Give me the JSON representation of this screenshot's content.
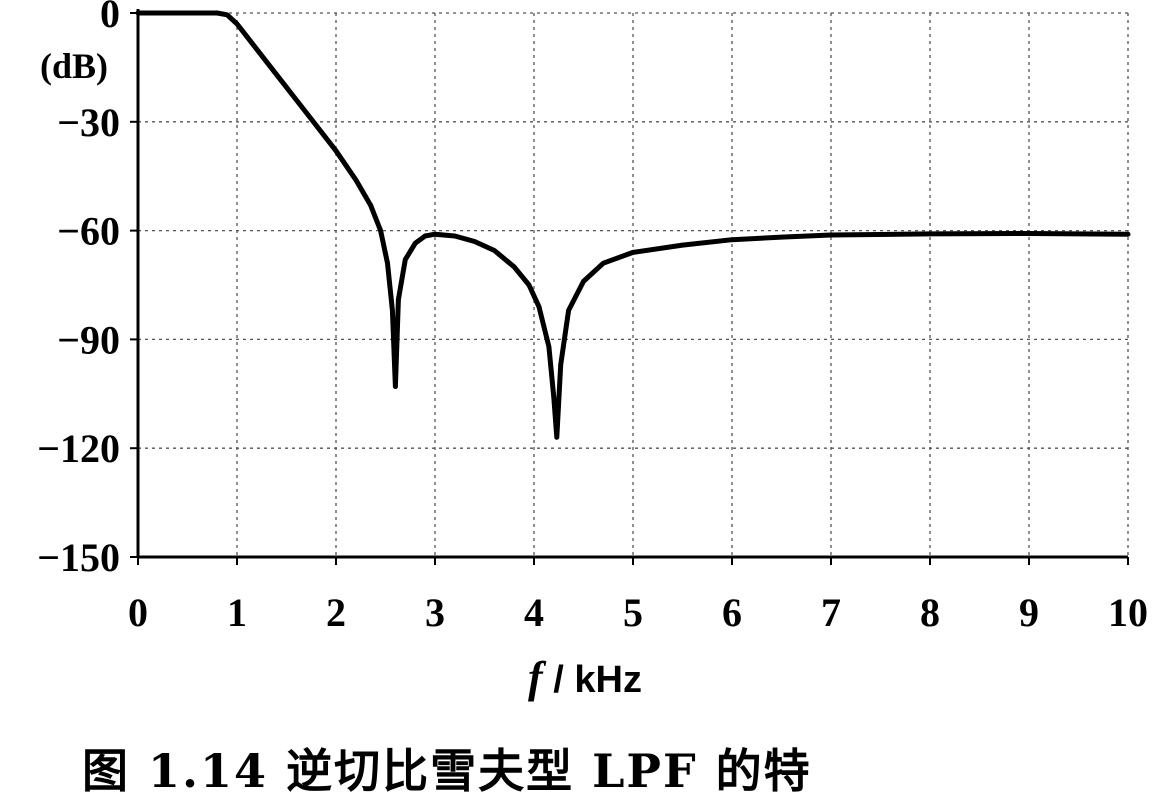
{
  "caption": "图 1.14  逆切比雪夫型 LPF 的特",
  "chart_data": {
    "type": "line",
    "title": "",
    "ylabel_unit": "(dB)",
    "xlabel_var": "f",
    "xlabel_unit": " / kHz",
    "xlim": [
      0,
      10
    ],
    "ylim": [
      -150,
      0
    ],
    "x_ticks": [
      "0",
      "1",
      "2",
      "3",
      "4",
      "5",
      "6",
      "7",
      "8",
      "9",
      "10"
    ],
    "y_ticks": [
      "0",
      "-30",
      "-60",
      "-90",
      "-120",
      "-150"
    ],
    "grid": true,
    "series": [
      {
        "color": "#000000",
        "x": [
          0,
          0.2,
          0.4,
          0.6,
          0.8,
          0.9,
          1.0,
          1.2,
          1.4,
          1.6,
          1.8,
          2.0,
          2.2,
          2.35,
          2.45,
          2.52,
          2.57,
          2.6,
          2.63,
          2.7,
          2.8,
          2.9,
          3.0,
          3.2,
          3.4,
          3.6,
          3.8,
          3.95,
          4.05,
          4.15,
          4.2,
          4.23,
          4.27,
          4.35,
          4.5,
          4.7,
          5.0,
          5.5,
          6.0,
          6.5,
          7.0,
          8.0,
          9.0,
          10.0
        ],
        "y": [
          0,
          0,
          0,
          0,
          0,
          -0.5,
          -3,
          -10,
          -17,
          -24,
          -31,
          -38,
          -46,
          -53,
          -60,
          -69,
          -82,
          -103,
          -79,
          -68,
          -63.5,
          -61.5,
          -61,
          -61.5,
          -63,
          -65.5,
          -70,
          -75,
          -81,
          -92,
          -106,
          -117,
          -97,
          -82,
          -74,
          -69,
          -66,
          -64,
          -62.5,
          -61.8,
          -61.2,
          -60.9,
          -60.8,
          -61
        ]
      }
    ]
  }
}
